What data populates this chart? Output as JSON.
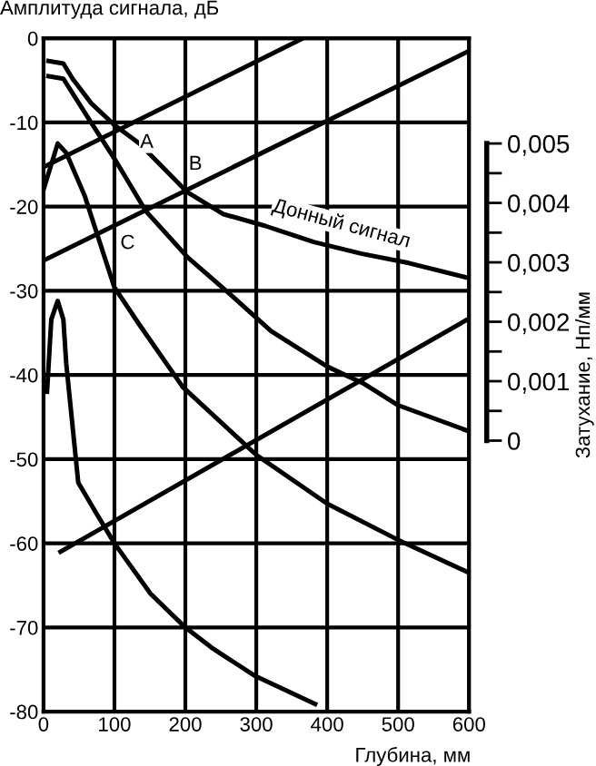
{
  "chart_data": {
    "type": "line",
    "ylabel": "Амплитуда сигнала, дБ",
    "xlabel": "Глубина, мм",
    "y2label": "Затухание, Нп/мм",
    "xlim": [
      0,
      600
    ],
    "xticks": [
      0,
      100,
      200,
      300,
      400,
      500,
      600
    ],
    "ylim": [
      -80,
      0
    ],
    "yticks": [
      -80,
      -70,
      -60,
      -50,
      -40,
      -30,
      -20,
      -10,
      0
    ],
    "y2lim": [
      -0.00456,
      0.00677
    ],
    "y2ticks": [
      0,
      {
        "value": 0.0005,
        "label": null
      },
      {
        "value": 0.001,
        "label": "0,001"
      },
      {
        "value": 0.0015,
        "label": null
      },
      {
        "value": 0.002,
        "label": "0,002"
      },
      {
        "value": 0.0025,
        "label": null
      },
      {
        "value": 0.003,
        "label": "0,003"
      },
      {
        "value": 0.0035,
        "label": null
      },
      {
        "value": 0.004,
        "label": "0,004"
      },
      {
        "value": 0.0045,
        "label": null
      },
      {
        "value": 0.005,
        "label": "0,005"
      }
    ],
    "grid": true,
    "legend": false,
    "line_style": "solid",
    "marker": "none",
    "series": [
      {
        "color": "#000000",
        "x": [
          7,
          28,
          41,
          67,
          100,
          135,
          203,
          254,
          313,
          381,
          449,
          515,
          600
        ],
        "values": [
          -2.7,
          -3,
          -4.8,
          -7.7,
          -10.3,
          -12.5,
          -18.3,
          -20.9,
          -22.3,
          -24.2,
          -25.6,
          -26.7,
          -28.5
        ]
      },
      {
        "color": "#000000",
        "x": [
          7,
          28,
          67,
          100,
          144,
          203,
          263,
          321,
          400,
          451,
          500,
          600
        ],
        "values": [
          -4.5,
          -4.8,
          -10,
          -14.3,
          -20.5,
          -26,
          -30.4,
          -34.8,
          -39,
          -41,
          -43.6,
          -46.7
        ]
      },
      {
        "color": "#000000",
        "x": [
          0,
          20,
          32,
          58,
          100,
          135,
          187,
          196,
          300,
          400,
          500,
          600
        ],
        "values": [
          -18,
          -12.5,
          -13.6,
          -18.7,
          -29.6,
          -34,
          -40.3,
          -41.4,
          -49.5,
          -55.3,
          -59.6,
          -63.5
        ]
      },
      {
        "color": "#000000",
        "x": [
          5,
          11,
          20,
          28,
          32,
          49,
          75,
          100,
          151,
          200,
          237,
          297,
          383
        ],
        "values": [
          -42,
          -33.4,
          -31.2,
          -33.4,
          -38.6,
          -52.8,
          -56.5,
          -60,
          -66,
          -70,
          -72.4,
          -75.7,
          -79.1
        ]
      },
      {
        "color": "#000000",
        "x": [
          0,
          366
        ],
        "values": [
          -15.3,
          0
        ]
      },
      {
        "color": "#000000",
        "x": [
          0,
          600
        ],
        "values": [
          -26.4,
          -1.5
        ]
      },
      {
        "color": "#000000",
        "x": [
          24,
          600
        ],
        "values": [
          -61,
          -33.3
        ]
      }
    ],
    "annotations": [
      {
        "text": "A",
        "x": 110,
        "y": -10.9
      },
      {
        "text": "B",
        "x": 200,
        "y": -18
      },
      {
        "text": "C",
        "x": 147,
        "y": -20.5
      },
      {
        "text": "Донный сигнал",
        "x": 420,
        "y": -24.8
      }
    ]
  }
}
